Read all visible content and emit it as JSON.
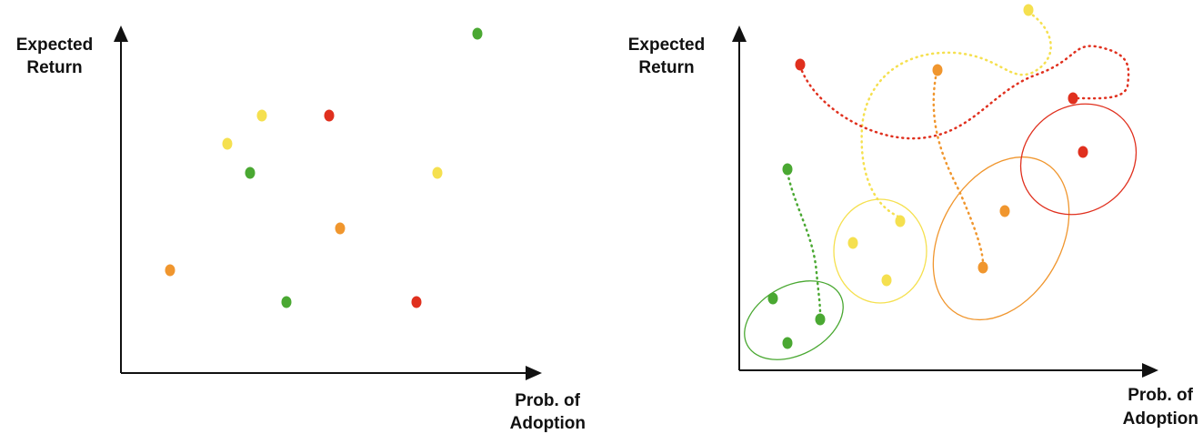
{
  "left_panel": {
    "y_axis_label": [
      "Expected",
      "Return"
    ],
    "x_axis_label": [
      "Prob. of",
      "Adoption"
    ]
  },
  "right_panel": {
    "y_axis_label": [
      "Expected",
      "Return"
    ],
    "x_axis_label": [
      "Prob. of",
      "Adoption"
    ]
  }
}
